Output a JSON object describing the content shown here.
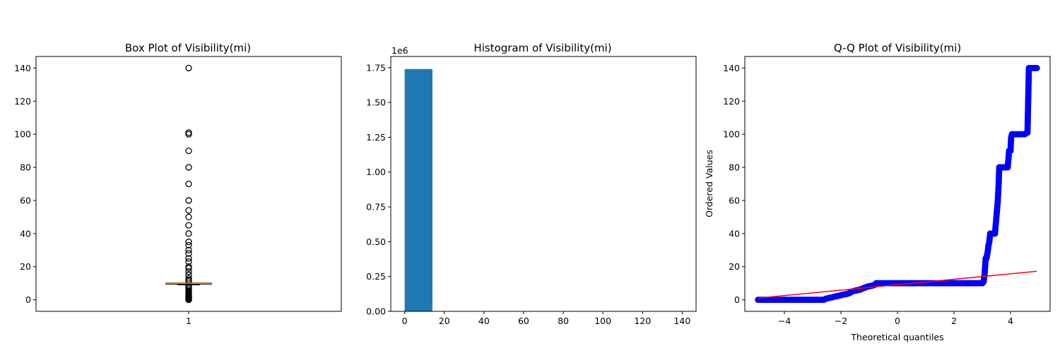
{
  "chart_data": [
    {
      "type": "box",
      "title": "Box Plot of Visibility(mi)",
      "xlabel": "",
      "ylabel": "",
      "categories": [
        "1"
      ],
      "ylim": [
        -7,
        147
      ],
      "yticks": [
        0,
        20,
        40,
        60,
        80,
        100,
        120,
        140
      ],
      "colors": {
        "box": "#000000",
        "median": "#ff7f0e",
        "flier": "#000000"
      },
      "box": {
        "whisker_low": 9.0,
        "q1": 10.0,
        "median": 10.0,
        "q3": 10.0,
        "whisker_high": 10.0
      },
      "fliers": [
        0,
        0.1,
        0.25,
        0.5,
        0.75,
        1,
        1.25,
        1.5,
        1.75,
        2,
        2.5,
        3,
        3.5,
        4,
        4.5,
        5,
        6,
        7,
        8,
        8.5,
        11,
        12,
        13,
        15,
        17,
        19,
        20,
        23,
        25,
        28,
        30,
        33,
        35,
        40,
        45,
        50,
        54,
        60,
        70,
        80,
        90,
        100,
        101,
        140
      ]
    },
    {
      "type": "bar",
      "title": "Histogram of Visibility(mi)",
      "xlabel": "",
      "ylabel": "",
      "offset_text": "1e6",
      "xlim": [
        -7,
        147
      ],
      "ylim": [
        0,
        1.83
      ],
      "xticks": [
        0,
        20,
        40,
        60,
        80,
        100,
        120,
        140
      ],
      "yticks": [
        0.0,
        0.25,
        0.5,
        0.75,
        1.0,
        1.25,
        1.5,
        1.75
      ],
      "ytick_labels": [
        "0.00",
        "0.25",
        "0.50",
        "0.75",
        "1.00",
        "1.25",
        "1.50",
        "1.75"
      ],
      "colors": {
        "bar": "#1f77b4"
      },
      "bin_edges": [
        0,
        14,
        28,
        42,
        56,
        70,
        84,
        98,
        112,
        126,
        140
      ],
      "counts": [
        1.74,
        0.0007,
        0.0002,
        0.0001,
        3e-05,
        2e-05,
        2e-05,
        1e-05,
        0,
        5e-06
      ]
    },
    {
      "type": "scatter",
      "title": "Q-Q Plot of Visibility(mi)",
      "xlabel": "Theoretical quantiles",
      "ylabel": "Ordered Values",
      "xlim": [
        -5.4,
        5.4
      ],
      "ylim": [
        -7,
        147
      ],
      "xticks": [
        -4,
        -2,
        0,
        2,
        4
      ],
      "xtick_labels": [
        "−4",
        "−2",
        "0",
        "2",
        "4"
      ],
      "yticks": [
        0,
        20,
        40,
        60,
        80,
        100,
        120,
        140
      ],
      "colors": {
        "points": "#0000ff",
        "fit_line": "#ff0000"
      },
      "fit_line": {
        "x": [
          -4.93,
          4.93
        ],
        "y": [
          1.0,
          17.2
        ]
      },
      "points": [
        [
          -4.93,
          0
        ],
        [
          -4.8,
          0
        ],
        [
          -4.6,
          0
        ],
        [
          -4.4,
          0
        ],
        [
          -4.2,
          0
        ],
        [
          -4.0,
          0
        ],
        [
          -3.8,
          0
        ],
        [
          -3.6,
          0
        ],
        [
          -3.4,
          0
        ],
        [
          -3.2,
          0
        ],
        [
          -3.0,
          0
        ],
        [
          -2.8,
          0
        ],
        [
          -2.6,
          0
        ],
        [
          -2.55,
          0.5
        ],
        [
          -2.45,
          1
        ],
        [
          -2.3,
          1.5
        ],
        [
          -2.2,
          2
        ],
        [
          -2.05,
          2.5
        ],
        [
          -1.95,
          3
        ],
        [
          -1.8,
          3.5
        ],
        [
          -1.7,
          4
        ],
        [
          -1.6,
          5
        ],
        [
          -1.5,
          5.5
        ],
        [
          -1.35,
          6
        ],
        [
          -1.2,
          7
        ],
        [
          -1.05,
          8
        ],
        [
          -0.9,
          8.5
        ],
        [
          -0.8,
          9
        ],
        [
          -0.75,
          10
        ],
        [
          -0.5,
          10
        ],
        [
          -0.25,
          10
        ],
        [
          0,
          10
        ],
        [
          0.25,
          10
        ],
        [
          0.5,
          10
        ],
        [
          0.75,
          10
        ],
        [
          1.0,
          10
        ],
        [
          1.25,
          10
        ],
        [
          1.5,
          10
        ],
        [
          1.75,
          10
        ],
        [
          2.0,
          10
        ],
        [
          2.25,
          10
        ],
        [
          2.5,
          10
        ],
        [
          2.75,
          10
        ],
        [
          3.0,
          10
        ],
        [
          3.05,
          11
        ],
        [
          3.08,
          15
        ],
        [
          3.1,
          20
        ],
        [
          3.12,
          25
        ],
        [
          3.15,
          25
        ],
        [
          3.2,
          30
        ],
        [
          3.22,
          33
        ],
        [
          3.25,
          35
        ],
        [
          3.28,
          40
        ],
        [
          3.35,
          40
        ],
        [
          3.45,
          40
        ],
        [
          3.5,
          50
        ],
        [
          3.52,
          54
        ],
        [
          3.55,
          60
        ],
        [
          3.58,
          70
        ],
        [
          3.6,
          80
        ],
        [
          3.7,
          80
        ],
        [
          3.8,
          80
        ],
        [
          3.9,
          80
        ],
        [
          3.95,
          90
        ],
        [
          4.0,
          90
        ],
        [
          4.02,
          98
        ],
        [
          4.05,
          100
        ],
        [
          4.2,
          100
        ],
        [
          4.35,
          100
        ],
        [
          4.5,
          100
        ],
        [
          4.6,
          101
        ],
        [
          4.65,
          140
        ],
        [
          4.8,
          140
        ],
        [
          4.93,
          140
        ]
      ]
    }
  ]
}
